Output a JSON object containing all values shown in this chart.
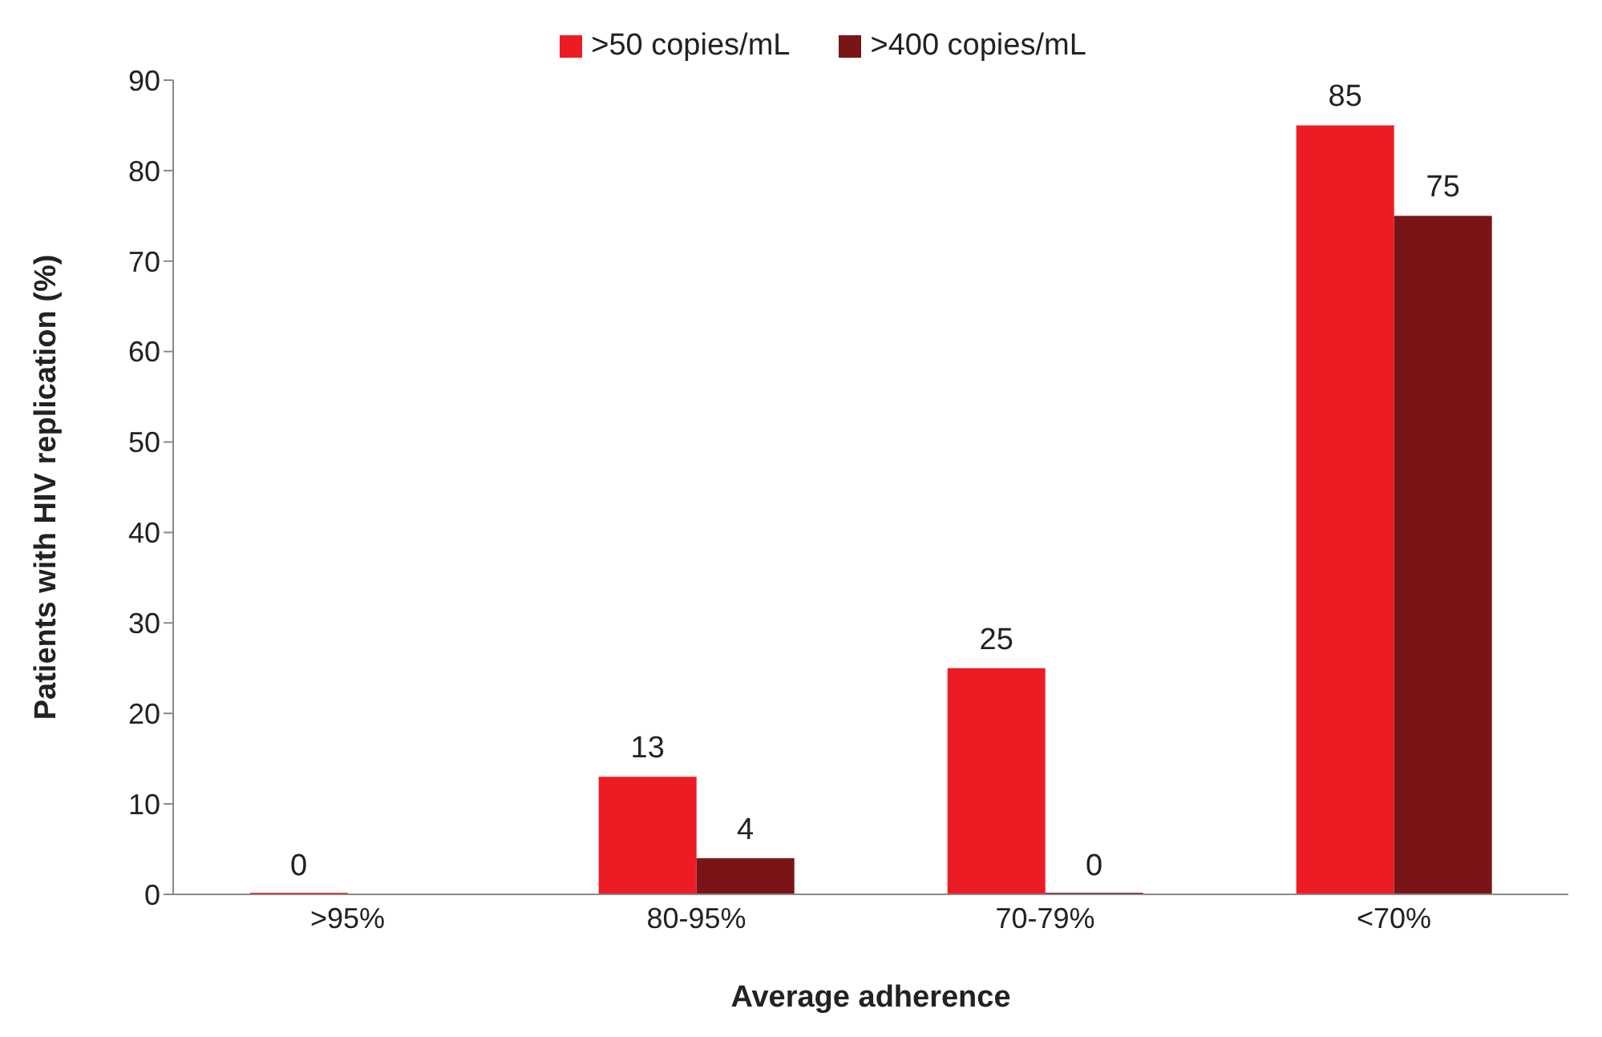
{
  "chart_data": {
    "type": "bar",
    "xlabel": "Average adherence",
    "ylabel": "Patients with  HIV replication (%)",
    "categories": [
      ">95%",
      "80-95%",
      "70-79%",
      "<70%"
    ],
    "series": [
      {
        "name": ">50 copies/mL",
        "color": "#ed1c24",
        "values": [
          0,
          13,
          25,
          85
        ],
        "value_labels": [
          "0",
          "13",
          "25",
          "85"
        ]
      },
      {
        "name": ">400 copies/mL",
        "color": "#7a1517",
        "values": [
          null,
          4,
          0,
          75
        ],
        "value_labels": [
          null,
          "4",
          "0",
          "75"
        ]
      }
    ],
    "ylim": [
      0,
      90
    ],
    "yticks": [
      0,
      10,
      20,
      30,
      40,
      50,
      60,
      70,
      80,
      90
    ],
    "grid": false,
    "legend": "top"
  }
}
